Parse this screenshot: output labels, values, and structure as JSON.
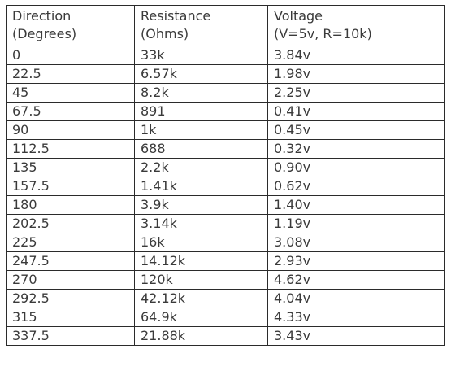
{
  "table": {
    "headers": [
      [
        "Direction",
        "(Degrees)"
      ],
      [
        "Resistance",
        "(Ohms)"
      ],
      [
        "Voltage",
        "(V=5v, R=10k)"
      ]
    ],
    "rows": [
      [
        "0",
        "33k",
        "3.84v"
      ],
      [
        "22.5",
        "6.57k",
        "1.98v"
      ],
      [
        "45",
        "8.2k",
        "2.25v"
      ],
      [
        "67.5",
        "891",
        "0.41v"
      ],
      [
        "90",
        "1k",
        "0.45v"
      ],
      [
        "112.5",
        "688",
        "0.32v"
      ],
      [
        "135",
        "2.2k",
        "0.90v"
      ],
      [
        "157.5",
        "1.41k",
        "0.62v"
      ],
      [
        "180",
        "3.9k",
        "1.40v"
      ],
      [
        "202.5",
        "3.14k",
        "1.19v"
      ],
      [
        "225",
        "16k",
        "3.08v"
      ],
      [
        "247.5",
        "14.12k",
        "2.93v"
      ],
      [
        "270",
        "120k",
        "4.62v"
      ],
      [
        "292.5",
        "42.12k",
        "4.04v"
      ],
      [
        "315",
        "64.9k",
        "4.33v"
      ],
      [
        "337.5",
        "21.88k",
        "3.43v"
      ]
    ]
  }
}
